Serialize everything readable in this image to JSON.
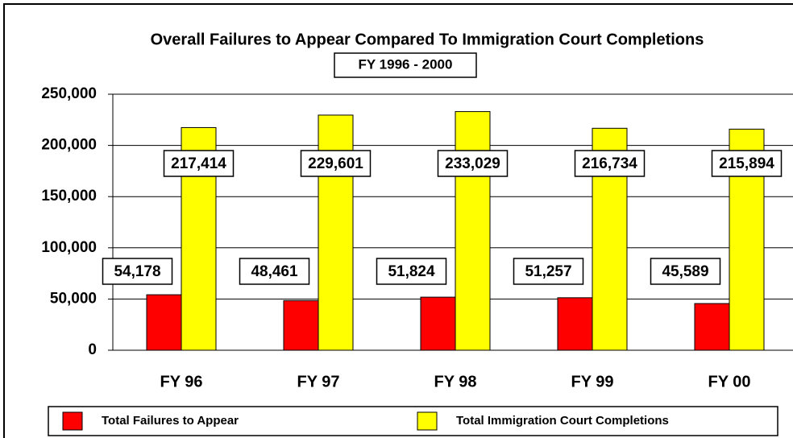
{
  "chart_data": {
    "type": "bar",
    "title": "Overall Failures to Appear Compared To Immigration Court Completions",
    "subtitle": "FY 1996 - 2000",
    "categories": [
      "FY 96",
      "FY 97",
      "FY 98",
      "FY 99",
      "FY 00"
    ],
    "series": [
      {
        "name": "Total Failures to Appear",
        "color": "#ff0000",
        "values": [
          54178,
          48461,
          51824,
          51257,
          45589
        ],
        "value_labels": [
          "54,178",
          "48,461",
          "51,824",
          "51,257",
          "45,589"
        ]
      },
      {
        "name": "Total Immigration Court Completions",
        "color": "#ffff00",
        "values": [
          217414,
          229601,
          233029,
          216734,
          215894
        ],
        "value_labels": [
          "217,414",
          "229,601",
          "233,029",
          "216,734",
          "215,894"
        ]
      }
    ],
    "ylim": [
      0,
      250000
    ],
    "yticks": [
      0,
      {
        "value": 50000,
        "label": "50,000"
      },
      {
        "value": 100000,
        "label": "100,000"
      },
      {
        "value": 150000,
        "label": "150,000"
      },
      {
        "value": 200000,
        "label": "200,000"
      },
      {
        "value": 250000,
        "label": "250,000"
      }
    ],
    "grid": true
  }
}
